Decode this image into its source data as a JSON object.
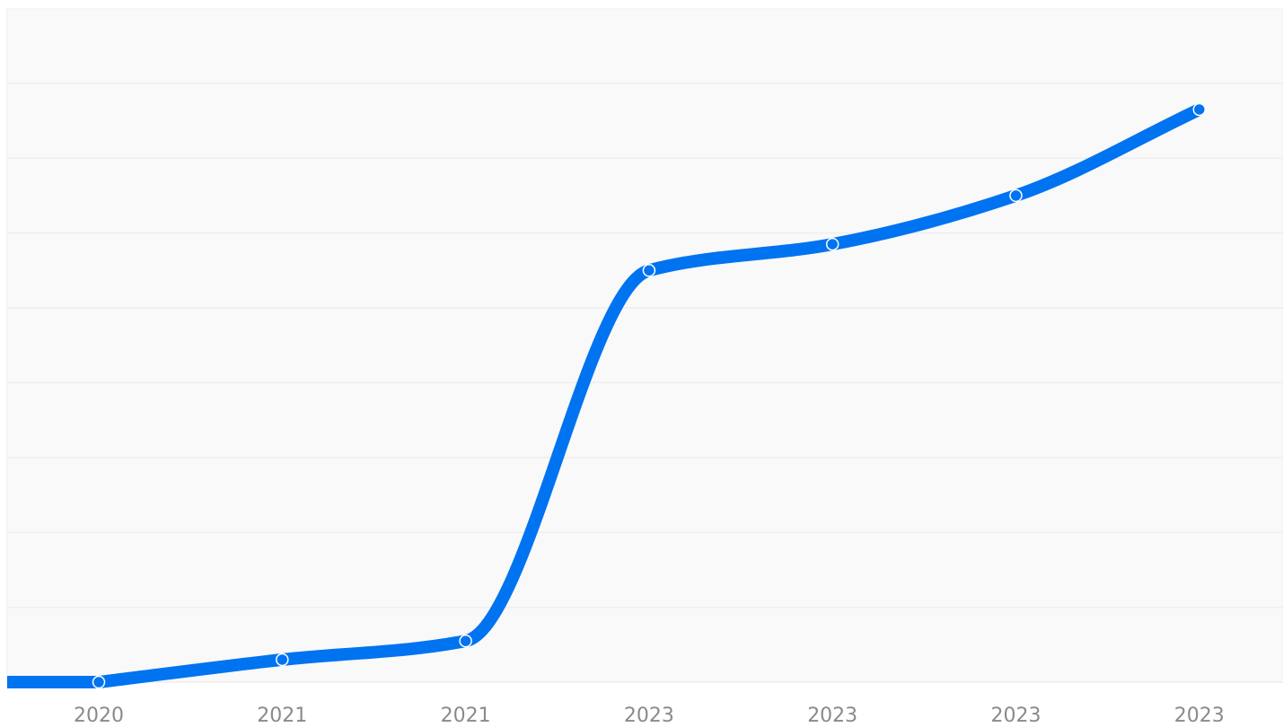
{
  "colors": {
    "background": "#ffffff",
    "plot_background": "#f9f9f9",
    "gridline": "#eeeeee",
    "line": "#0073f0",
    "marker_fill": "#0073f0",
    "marker_stroke": "#ffffff",
    "tick_label": "#8a8a8a"
  },
  "chart_data": {
    "type": "line",
    "title": "",
    "xlabel": "",
    "ylabel": "",
    "smooth": true,
    "grid": true,
    "legend": "none",
    "y_axis_labels_shown": false,
    "ylim": [
      0,
      16
    ],
    "categories": [
      "2020",
      "2021",
      "2021",
      "2023",
      "2023",
      "2023",
      "2023"
    ],
    "series": [
      {
        "values": [
          0,
          0.6,
          1.1,
          11.0,
          11.7,
          13.0,
          15.3
        ]
      }
    ]
  }
}
